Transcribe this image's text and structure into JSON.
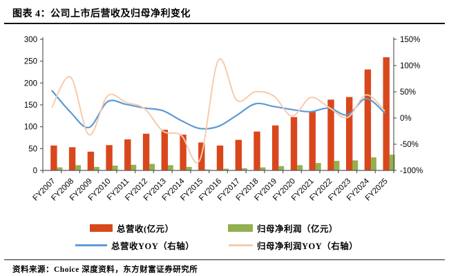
{
  "title": "图表 4：公司上市后营收及归母净利变化",
  "source": "资料来源：Choice 深度资料，东方财富证券研究所",
  "colors": {
    "revenue_bar": "#D9471D",
    "profit_bar": "#94B04F",
    "revenue_yoy_line": "#5B9BD5",
    "profit_yoy_line": "#F7CBAA",
    "axis": "#595959",
    "text": "#000000"
  },
  "chart_data": {
    "type": "bar",
    "subtype": "bar-line combo, dual axis",
    "categories": [
      "FY2007",
      "FY2008",
      "FY2009",
      "FY2010",
      "FY2011",
      "FY2012",
      "FY2013",
      "FY2014",
      "FY2015",
      "FY2016",
      "FY2017",
      "FY2018",
      "FY2019",
      "FY2020",
      "FY2021",
      "FY2022",
      "FY2023",
      "FY2024",
      "FY2025"
    ],
    "series": [
      {
        "name": "总营收(亿元）",
        "type": "bar",
        "axis": "left",
        "color": "#D9471D",
        "values": [
          57,
          53,
          43,
          58,
          71,
          84,
          93,
          82,
          64,
          57,
          70,
          89,
          103,
          122,
          134,
          162,
          168,
          231,
          259
        ]
      },
      {
        "name": "归母净利润（亿元）",
        "type": "bar",
        "axis": "left",
        "color": "#94B04F",
        "values": [
          7,
          12,
          8,
          11,
          13,
          15,
          12,
          8,
          2,
          4,
          5,
          7,
          10,
          12,
          17,
          22,
          23,
          30,
          36
        ]
      },
      {
        "name": "总营收YOY（右轴）",
        "type": "line",
        "axis": "right",
        "unit": "%",
        "color": "#5B9BD5",
        "values": [
          52,
          11,
          -18,
          31,
          26,
          19,
          14,
          -5,
          -20,
          -16,
          5,
          27,
          22,
          16,
          12,
          19,
          6,
          37,
          10
        ]
      },
      {
        "name": "归母净利润YOY（右轴）",
        "type": "line",
        "axis": "right",
        "unit": "%",
        "color": "#F7CBAA",
        "values": [
          21,
          78,
          -32,
          42,
          30,
          18,
          -25,
          -33,
          -80,
          110,
          34,
          50,
          42,
          4,
          39,
          20,
          1,
          44,
          14
        ]
      }
    ],
    "left_axis": {
      "min": 0,
      "max": 300,
      "step": 50,
      "tick_labels": [
        "0",
        "50",
        "100",
        "150",
        "200",
        "250",
        "300"
      ]
    },
    "right_axis": {
      "min": -100,
      "max": 150,
      "step": 50,
      "tick_labels": [
        "-100%",
        "-50%",
        "0%",
        "50%",
        "100%",
        "150%"
      ]
    },
    "xlabel": "",
    "ylabel": "",
    "grid": false,
    "legend_position": "bottom",
    "x_tick_rotation": -45
  }
}
